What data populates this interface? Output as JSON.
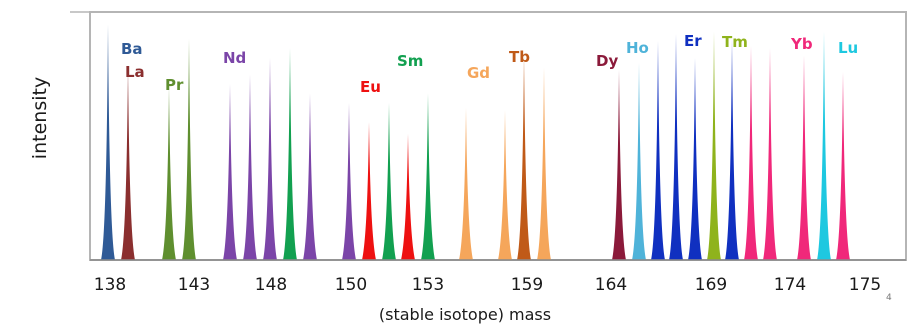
{
  "chart_data": {
    "type": "bar",
    "title": "",
    "xlabel": "(stable isotope) mass",
    "ylabel": "intensity",
    "corner_note": "4",
    "grid": false,
    "legend": "none",
    "x_ticks": [
      "138",
      "143",
      "148",
      "150",
      "153",
      "159",
      "164",
      "169",
      "174",
      "175"
    ],
    "elements": [
      {
        "name": "Ba",
        "color": "#2f5a96"
      },
      {
        "name": "La",
        "color": "#8b2f2f"
      },
      {
        "name": "Pr",
        "color": "#5f8f2f"
      },
      {
        "name": "Nd",
        "color": "#7b45a8"
      },
      {
        "name": "Sm",
        "color": "#12a050"
      },
      {
        "name": "Eu",
        "color": "#ee1111"
      },
      {
        "name": "Gd",
        "color": "#f5a65b"
      },
      {
        "name": "Tb",
        "color": "#c05a18"
      },
      {
        "name": "Dy",
        "color": "#8b1a3a"
      },
      {
        "name": "Ho",
        "color": "#4fb3d9"
      },
      {
        "name": "Er",
        "color": "#1030c0"
      },
      {
        "name": "Tm",
        "color": "#8fb31c"
      },
      {
        "name": "Yb",
        "color": "#f0287a"
      },
      {
        "name": "Lu",
        "color": "#1ec8e0"
      }
    ],
    "peaks": [
      {
        "element": "Ba",
        "height": 0.99
      },
      {
        "element": "La",
        "height": 0.82
      },
      {
        "element": "Pr",
        "height": 0.73
      },
      {
        "element": "Pr",
        "height": 0.93
      },
      {
        "element": "Nd",
        "height": 0.74
      },
      {
        "element": "Nd",
        "height": 0.78
      },
      {
        "element": "Nd",
        "height": 0.85
      },
      {
        "element": "Sm",
        "height": 0.89
      },
      {
        "element": "Nd",
        "height": 0.7
      },
      {
        "element": "Nd",
        "height": 0.66
      },
      {
        "element": "Eu",
        "height": 0.58
      },
      {
        "element": "Sm",
        "height": 0.66
      },
      {
        "element": "Eu",
        "height": 0.53
      },
      {
        "element": "Sm",
        "height": 0.7
      },
      {
        "element": "Gd",
        "height": 0.64
      },
      {
        "element": "Gd",
        "height": 0.63
      },
      {
        "element": "Tb",
        "height": 0.87
      },
      {
        "element": "Gd",
        "height": 0.81
      },
      {
        "element": "Dy",
        "height": 0.8
      },
      {
        "element": "Ho",
        "height": 0.83
      },
      {
        "element": "Er",
        "height": 0.92
      },
      {
        "element": "Er",
        "height": 0.95
      },
      {
        "element": "Er",
        "height": 0.85
      },
      {
        "element": "Tm",
        "height": 0.96
      },
      {
        "element": "Er",
        "height": 0.93
      },
      {
        "element": "Yb",
        "height": 0.9
      },
      {
        "element": "Yb",
        "height": 0.89
      },
      {
        "element": "Yb",
        "height": 0.86
      },
      {
        "element": "Lu",
        "height": 0.96
      },
      {
        "element": "Yb",
        "height": 0.79
      }
    ],
    "labels": [
      {
        "text": "Ba",
        "element": "Ba"
      },
      {
        "text": "La",
        "element": "La"
      },
      {
        "text": "Pr",
        "element": "Pr"
      },
      {
        "text": "Nd",
        "element": "Nd"
      },
      {
        "text": "Eu",
        "element": "Eu"
      },
      {
        "text": "Sm",
        "element": "Sm"
      },
      {
        "text": "Gd",
        "element": "Gd"
      },
      {
        "text": "Tb",
        "element": "Tb"
      },
      {
        "text": "Dy",
        "element": "Dy"
      },
      {
        "text": "Ho",
        "element": "Ho"
      },
      {
        "text": "Er",
        "element": "Er"
      },
      {
        "text": "Tm",
        "element": "Tm"
      },
      {
        "text": "Yb",
        "element": "Yb"
      },
      {
        "text": "Lu",
        "element": "Lu"
      }
    ]
  }
}
